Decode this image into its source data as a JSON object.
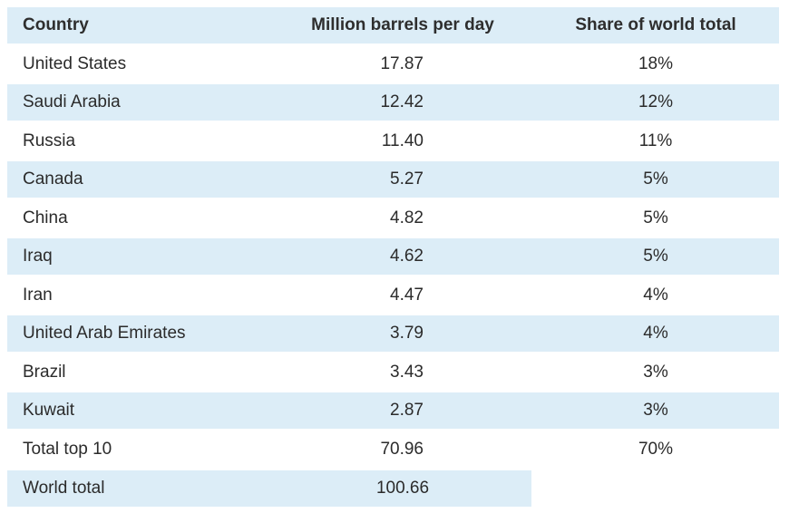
{
  "chart_data": {
    "type": "table",
    "columns": [
      "Country",
      "Million barrels per day",
      "Share of world total"
    ],
    "rows": [
      {
        "country": "United States",
        "mbpd": "17.87",
        "share": "18%"
      },
      {
        "country": "Saudi Arabia",
        "mbpd": "12.42",
        "share": "12%"
      },
      {
        "country": "Russia",
        "mbpd": "11.40",
        "share": "11%"
      },
      {
        "country": "Canada",
        "mbpd": "5.27",
        "share": "5%"
      },
      {
        "country": "China",
        "mbpd": "4.82",
        "share": "5%"
      },
      {
        "country": "Iraq",
        "mbpd": "4.62",
        "share": "5%"
      },
      {
        "country": "Iran",
        "mbpd": "4.47",
        "share": "4%"
      },
      {
        "country": "United Arab Emirates",
        "mbpd": "3.79",
        "share": "4%"
      },
      {
        "country": "Brazil",
        "mbpd": "3.43",
        "share": "3%"
      },
      {
        "country": "Kuwait",
        "mbpd": "2.87",
        "share": "3%"
      }
    ],
    "totals": [
      {
        "country": "Total top 10",
        "mbpd": "70.96",
        "share": "70%"
      },
      {
        "country": "World total",
        "mbpd": "100.66",
        "share": ""
      }
    ],
    "colors": {
      "band": "#dcedf7",
      "text": "#2b2b2b"
    }
  }
}
